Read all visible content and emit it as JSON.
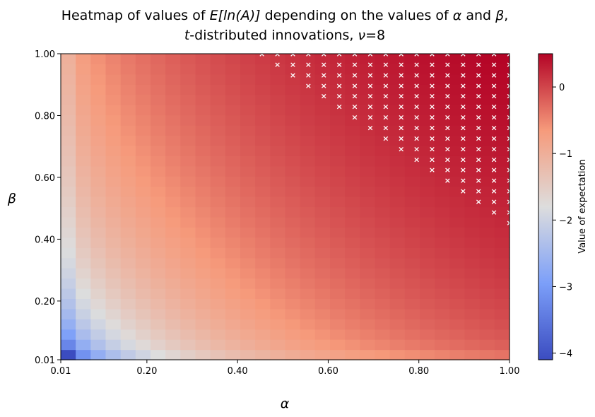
{
  "chart_data": {
    "type": "heatmap",
    "title": {
      "line1_prefix": "Heatmap of values of ",
      "line1_expr": "E[ln(A)]",
      "line1_mid": " depending on the values of ",
      "line1_alpha": "α",
      "line1_and": " and ",
      "line1_beta": "β",
      "line1_end": ",",
      "line2_t": "t",
      "line2_rest": "-distributed innovations, ",
      "line2_nu": "ν",
      "line2_eq": "=8"
    },
    "xlabel": "α",
    "ylabel": "β",
    "colorbar_label": "Value of expectation",
    "xlim": [
      0.01,
      1.0
    ],
    "ylim": [
      0.01,
      1.0
    ],
    "grid_size": [
      30,
      30
    ],
    "colormap": "coolwarm",
    "color_range": [
      -4.1,
      0.5
    ],
    "x_ticks": [
      {
        "value": 0.01,
        "label": "0.01"
      },
      {
        "value": 0.2,
        "label": "0.20"
      },
      {
        "value": 0.4,
        "label": "0.40"
      },
      {
        "value": 0.6,
        "label": "0.60"
      },
      {
        "value": 0.8,
        "label": "0.80"
      },
      {
        "value": 1.0,
        "label": "1.00"
      }
    ],
    "y_ticks": [
      {
        "value": 0.01,
        "label": "0.01"
      },
      {
        "value": 0.2,
        "label": "0.20"
      },
      {
        "value": 0.4,
        "label": "0.40"
      },
      {
        "value": 0.6,
        "label": "0.60"
      },
      {
        "value": 0.8,
        "label": "0.80"
      },
      {
        "value": 1.0,
        "label": "1.00"
      }
    ],
    "colorbar_ticks": [
      {
        "value": 0,
        "label": "0"
      },
      {
        "value": -1,
        "label": "−1"
      },
      {
        "value": -2,
        "label": "−2"
      },
      {
        "value": -3,
        "label": "−3"
      },
      {
        "value": -4,
        "label": "−4"
      }
    ],
    "value_model": {
      "description_source": "estimated from colors",
      "low_corner_value": -4.1,
      "high_corner_value": 0.5
    },
    "marker": {
      "symbol": "×",
      "color": "#ffffff",
      "rule": "cell marked where alpha + beta exceeds boundary",
      "boundary_alpha_plus_beta": 1.42
    }
  }
}
